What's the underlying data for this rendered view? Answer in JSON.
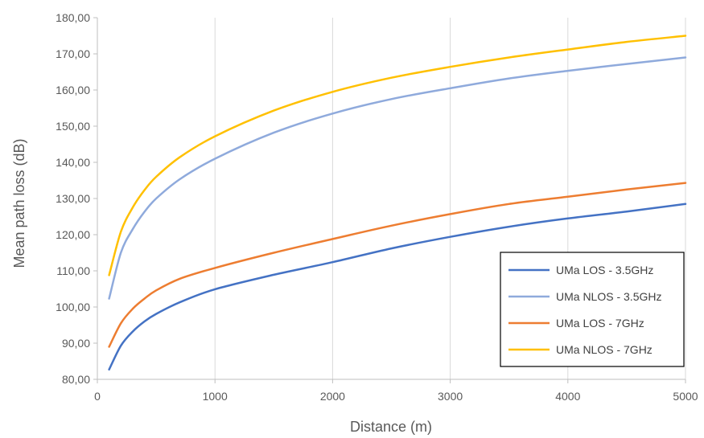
{
  "chart_data": {
    "type": "line",
    "title": "",
    "xlabel": "Distance (m)",
    "ylabel": "Mean path loss (dB)",
    "xlim": [
      0,
      5000
    ],
    "ylim": [
      80,
      180
    ],
    "x_ticks": [
      0,
      1000,
      2000,
      3000,
      4000,
      5000
    ],
    "y_ticks": [
      80,
      90,
      100,
      110,
      120,
      130,
      140,
      150,
      160,
      170,
      180
    ],
    "x_tick_labels": [
      "0",
      "1000",
      "2000",
      "3000",
      "4000",
      "5000"
    ],
    "y_tick_labels": [
      "80,00",
      "90,00",
      "100,00",
      "110,00",
      "120,00",
      "130,00",
      "140,00",
      "150,00",
      "160,00",
      "170,00",
      "180,00"
    ],
    "grid": "vertical",
    "legend_position": "bottom-right",
    "x": [
      100,
      200,
      300,
      400,
      500,
      700,
      1000,
      1500,
      2000,
      2500,
      3000,
      3500,
      4000,
      4500,
      5000
    ],
    "series": [
      {
        "name": "UMa LOS - 3.5GHz",
        "color": "#4472C4",
        "values": [
          82.7,
          89.3,
          93.2,
          96.0,
          98.1,
          101.3,
          104.9,
          108.9,
          112.4,
          116.2,
          119.4,
          122.2,
          124.5,
          126.4,
          128.5
        ]
      },
      {
        "name": "UMa NLOS - 3.5GHz",
        "color": "#8FAADC",
        "values": [
          102.3,
          115.0,
          121.5,
          126.3,
          130.0,
          135.3,
          141.0,
          148.2,
          153.5,
          157.5,
          160.5,
          163.2,
          165.3,
          167.2,
          169.0
        ]
      },
      {
        "name": "UMa LOS - 7GHz",
        "color": "#ED7D31",
        "values": [
          89.0,
          95.5,
          99.5,
          102.3,
          104.6,
          107.8,
          110.8,
          115.0,
          118.8,
          122.5,
          125.7,
          128.5,
          130.5,
          132.5,
          134.3
        ]
      },
      {
        "name": "UMa NLOS - 7GHz",
        "color": "#FFC000",
        "values": [
          108.8,
          120.8,
          127.5,
          132.3,
          136.0,
          141.4,
          147.2,
          154.3,
          159.5,
          163.4,
          166.4,
          169.0,
          171.2,
          173.3,
          175.0
        ]
      }
    ]
  }
}
